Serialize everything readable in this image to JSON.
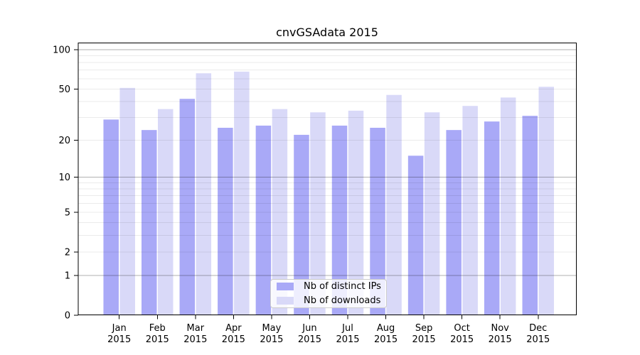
{
  "chart_data": {
    "type": "bar",
    "title": "cnvGSAdata 2015",
    "x_categories": [
      "Jan",
      "Feb",
      "Mar",
      "Apr",
      "May",
      "Jun",
      "Jul",
      "Aug",
      "Sep",
      "Oct",
      "Nov",
      "Dec"
    ],
    "x_year": "2015",
    "y_scale": "log10(value+1)",
    "y_tick_labels": [
      100,
      50,
      20,
      10,
      5,
      2,
      1,
      0
    ],
    "y_minor_gridlines": [
      2,
      3,
      4,
      5,
      6,
      7,
      8,
      9,
      20,
      30,
      40,
      50,
      60,
      70,
      80,
      90
    ],
    "y_major_gridlines": [
      1,
      10,
      100
    ],
    "ylim": [
      0,
      110
    ],
    "grid": true,
    "legend_position": "bottom-center",
    "series": [
      {
        "name": "Nb of distinct IPs",
        "key": "distinct-ips",
        "color": "#a9a9f7",
        "values": [
          29,
          24,
          42,
          25,
          26,
          22,
          26,
          25,
          15,
          24,
          28,
          31
        ]
      },
      {
        "name": "Nb of downloads",
        "key": "downloads",
        "color": "#d9d9f8",
        "values": [
          51,
          35,
          66,
          68,
          35,
          33,
          34,
          45,
          33,
          37,
          43,
          52
        ]
      }
    ]
  },
  "style_colors": {
    "axis": "#000000",
    "minor_grid": "rgba(0,0,0,0.08)",
    "major_grid": "rgba(0,0,0,0.30)",
    "legend_border": "#cccccc"
  }
}
